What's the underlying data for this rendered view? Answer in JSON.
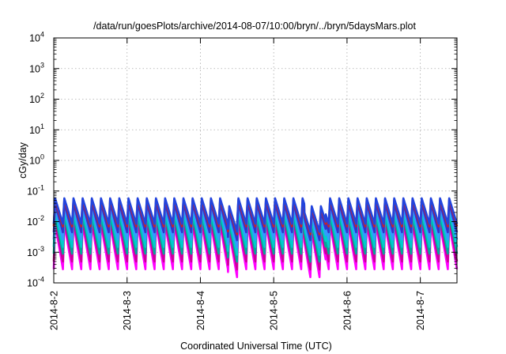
{
  "chart_data": {
    "type": "line",
    "title": "/data/run/goesPlots/archive/2014-08-07/10:00/bryn/../bryn/5daysMars.plot",
    "xlabel": "Coordinated Universal Time (UTC)",
    "ylabel": "cGy/day",
    "y_scale": "log",
    "ylim": [
      0.0001,
      10000
    ],
    "y_ticks": [
      {
        "value": 0.0001,
        "base": "10",
        "exp": "-4"
      },
      {
        "value": 0.001,
        "base": "10",
        "exp": "-3"
      },
      {
        "value": 0.01,
        "base": "10",
        "exp": "-2"
      },
      {
        "value": 0.1,
        "base": "10",
        "exp": "-1"
      },
      {
        "value": 1,
        "base": "10",
        "exp": "0"
      },
      {
        "value": 10,
        "base": "10",
        "exp": "1"
      },
      {
        "value": 100,
        "base": "10",
        "exp": "2"
      },
      {
        "value": 1000,
        "base": "10",
        "exp": "3"
      },
      {
        "value": 10000,
        "base": "10",
        "exp": "4"
      }
    ],
    "xlim": [
      "2014-08-02 00:00",
      "2014-08-07 12:00"
    ],
    "x_ticks": [
      "2014-8-2",
      "2014-8-3",
      "2014-8-4",
      "2014-8-5",
      "2014-8-6",
      "2014-8-7"
    ],
    "grid": true,
    "pattern": {
      "cycle_hours": 3.0,
      "rise_fraction": 0.15,
      "quiet_windows": [
        {
          "start": "2014-08-04 09:00",
          "end": "2014-08-04 12:00"
        },
        {
          "start": "2014-08-05 10:00",
          "end": "2014-08-05 17:00"
        }
      ],
      "quiet_factor": 0.55
    },
    "series": [
      {
        "color": "#ff00ff",
        "peak": 0.0085,
        "trough": 0.00028
      },
      {
        "color": "#cc0099",
        "peak": 0.011,
        "trough": 0.0005
      },
      {
        "color": "#00aa99",
        "peak": 0.016,
        "trough": 0.0009
      },
      {
        "color": "#00cccc",
        "peak": 0.022,
        "trough": 0.0015
      },
      {
        "color": "#3399ff",
        "peak": 0.03,
        "trough": 0.0026
      },
      {
        "color": "#3333cc",
        "peak": 0.04,
        "trough": 0.0045
      },
      {
        "color": "#cc2222",
        "peak": 0.052,
        "trough": 0.007
      },
      {
        "color": "#2244dd",
        "peak": 0.058,
        "trough": 0.0085
      }
    ]
  }
}
